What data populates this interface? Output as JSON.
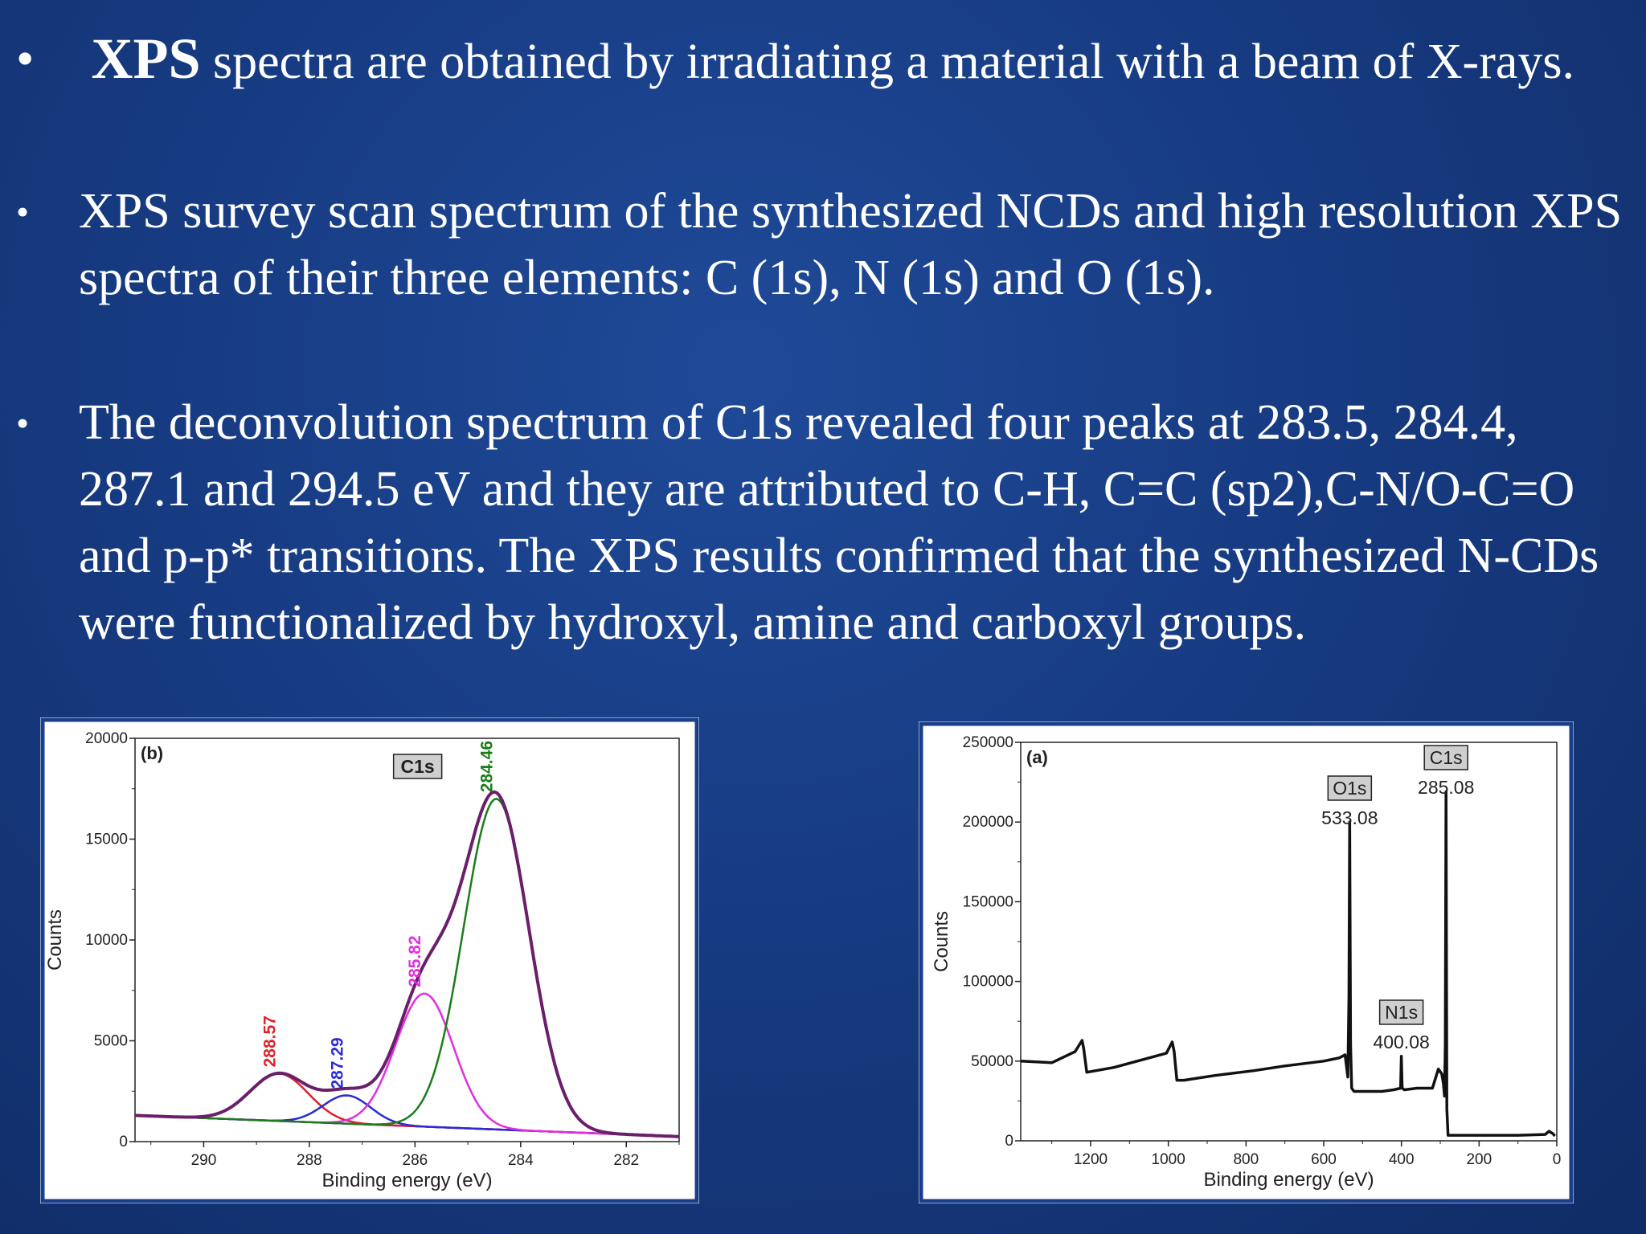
{
  "slide": {
    "bullets": [
      {
        "bold": "XPS",
        "text": " spectra are obtained by irradiating a material with a beam of X-rays."
      },
      {
        "text": "XPS survey scan spectrum of the synthesized NCDs and high resolution XPS spectra of their three elements: C (1s), N (1s) and O (1s)."
      },
      {
        "text": "The deconvolution spectrum of C1s revealed four peaks at 283.5, 284.4, 287.1 and 294.5 eV and they are attributed to C-H, C=C (sp2),C-N/O-C=O and p-p* transitions. The XPS results confirmed that the synthesized N-CDs were functionalized by hydroxyl, amine and carboxyl groups."
      }
    ],
    "bullet_symbol": "•"
  },
  "chart_data": [
    {
      "id": "c1s",
      "type": "line",
      "panel_label": "(b)",
      "boxed_label": "C1s",
      "xlabel": "Binding energy (eV)",
      "ylabel": "Counts",
      "xlim": [
        291.3,
        281.0
      ],
      "ylim": [
        0,
        20000
      ],
      "x_ticks": [
        290,
        288,
        286,
        284,
        282
      ],
      "y_ticks": [
        0,
        5000,
        10000,
        15000,
        20000
      ],
      "baseline": {
        "x": [
          291.3,
          281.0
        ],
        "y": [
          1300,
          250
        ]
      },
      "components": [
        {
          "peak_label": "288.57",
          "center": 288.57,
          "height": 2350,
          "sigma": 0.55,
          "color": "#e0202a"
        },
        {
          "peak_label": "287.29",
          "center": 287.29,
          "height": 1400,
          "sigma": 0.45,
          "color": "#2a2ad8"
        },
        {
          "peak_label": "285.82",
          "center": 285.82,
          "height": 6600,
          "sigma": 0.55,
          "color": "#e22de0"
        },
        {
          "peak_label": "284.46",
          "center": 284.46,
          "height": 16400,
          "sigma": 0.62,
          "color": "#1a7d1a"
        }
      ],
      "envelope_color": "#6a1f6a"
    },
    {
      "id": "survey",
      "type": "line",
      "panel_label": "(a)",
      "xlabel": "Binding energy (eV)",
      "ylabel": "Counts",
      "xlim": [
        1380,
        0
      ],
      "ylim": [
        0,
        250000
      ],
      "x_ticks": [
        1200,
        1000,
        800,
        600,
        400,
        200,
        0
      ],
      "y_ticks": [
        0,
        50000,
        100000,
        150000,
        200000,
        250000
      ],
      "annotations": [
        {
          "box": "O1s",
          "value": "533.08",
          "x": 533.08
        },
        {
          "box": "C1s",
          "value": "285.08",
          "x": 285.08
        },
        {
          "box": "N1s",
          "value": "400.08",
          "x": 400.08
        }
      ],
      "x": [
        1380,
        1300,
        1240,
        1222,
        1218,
        1210,
        1140,
        1005,
        990,
        985,
        978,
        960,
        880,
        780,
        700,
        600,
        560,
        545,
        538,
        535,
        533.08,
        531,
        528,
        522,
        500,
        450,
        420,
        402,
        400.08,
        398,
        392,
        360,
        320,
        305,
        296,
        292,
        289,
        287,
        285.08,
        283,
        280,
        275,
        260,
        200,
        100,
        30,
        20,
        10,
        5
      ],
      "y": [
        50000,
        49000,
        56000,
        63000,
        58000,
        43000,
        46000,
        55000,
        62000,
        56000,
        38000,
        38000,
        41000,
        44000,
        47000,
        50000,
        52000,
        54000,
        40000,
        90000,
        200000,
        60000,
        33000,
        31000,
        31000,
        31000,
        32000,
        33000,
        53000,
        33000,
        32000,
        33000,
        33000,
        45000,
        42000,
        36000,
        28000,
        60000,
        219000,
        20000,
        3500,
        3500,
        3500,
        3500,
        3500,
        4000,
        6000,
        4500,
        3000
      ]
    }
  ]
}
